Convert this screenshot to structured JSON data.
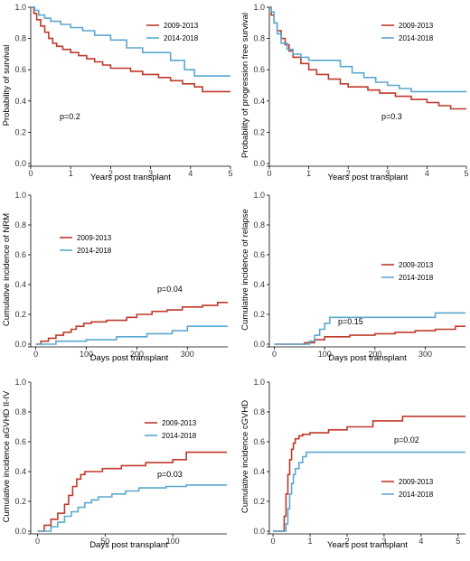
{
  "colors": {
    "series_2009_2013": "#c0392b",
    "series_2014_2018": "#5ba8cf"
  },
  "chart_data": [
    {
      "type": "line",
      "step": true,
      "xlabel": "Years post transplant",
      "ylabel": "Probability of survival",
      "xlim": [
        0,
        5
      ],
      "ylim": [
        0,
        1
      ],
      "xticks": [
        0,
        1,
        2,
        3,
        4,
        5
      ],
      "xtick_labels": [
        "0",
        "1",
        "2",
        "3",
        "4",
        "5"
      ],
      "yticks": [
        0,
        0.2,
        0.4,
        0.6,
        0.8,
        1.0
      ],
      "ytick_labels": [
        "0.0",
        "0.2",
        "0.4",
        "0.6",
        "0.8",
        "1.0"
      ],
      "pvalue": "p=0.2",
      "legend_position": "top-right",
      "series": [
        {
          "name": "2009-2013",
          "color": "#c0392b",
          "x": [
            0,
            0.08,
            0.15,
            0.25,
            0.35,
            0.45,
            0.55,
            0.65,
            0.8,
            1.0,
            1.2,
            1.4,
            1.6,
            1.8,
            2.0,
            2.5,
            2.8,
            3.2,
            3.5,
            3.8,
            4.1,
            4.3,
            5.0
          ],
          "y": [
            1.0,
            0.96,
            0.92,
            0.88,
            0.84,
            0.8,
            0.77,
            0.75,
            0.73,
            0.71,
            0.69,
            0.67,
            0.65,
            0.63,
            0.61,
            0.59,
            0.57,
            0.55,
            0.53,
            0.51,
            0.49,
            0.46,
            0.46
          ]
        },
        {
          "name": "2014-2018",
          "color": "#5ba8cf",
          "x": [
            0,
            0.1,
            0.2,
            0.35,
            0.5,
            0.75,
            1.0,
            1.3,
            1.6,
            2.0,
            2.4,
            2.8,
            3.5,
            3.85,
            4.1,
            5.0
          ],
          "y": [
            1.0,
            0.98,
            0.95,
            0.93,
            0.91,
            0.89,
            0.87,
            0.85,
            0.82,
            0.79,
            0.74,
            0.71,
            0.66,
            0.6,
            0.56,
            0.56
          ]
        }
      ]
    },
    {
      "type": "line",
      "step": true,
      "xlabel": "Years post transplant",
      "ylabel": "Probability of progression free survival",
      "xlim": [
        0,
        5
      ],
      "ylim": [
        0,
        1
      ],
      "xticks": [
        0,
        1,
        2,
        3,
        4,
        5
      ],
      "xtick_labels": [
        "0",
        "1",
        "2",
        "3",
        "4",
        "5"
      ],
      "yticks": [
        0,
        0.2,
        0.4,
        0.6,
        0.8,
        1.0
      ],
      "ytick_labels": [
        "0.0",
        "0.2",
        "0.4",
        "0.6",
        "0.8",
        "1.0"
      ],
      "pvalue": "p=0.3",
      "legend_position": "top-right",
      "series": [
        {
          "name": "2009-2013",
          "color": "#c0392b",
          "x": [
            0,
            0.05,
            0.12,
            0.2,
            0.3,
            0.4,
            0.5,
            0.6,
            0.8,
            1.0,
            1.2,
            1.5,
            1.8,
            2.0,
            2.5,
            2.8,
            3.2,
            3.6,
            4.0,
            4.3,
            4.6,
            5.0
          ],
          "y": [
            1.0,
            0.95,
            0.9,
            0.85,
            0.8,
            0.76,
            0.72,
            0.68,
            0.64,
            0.6,
            0.57,
            0.54,
            0.51,
            0.49,
            0.47,
            0.45,
            0.43,
            0.41,
            0.39,
            0.37,
            0.35,
            0.35
          ]
        },
        {
          "name": "2014-2018",
          "color": "#5ba8cf",
          "x": [
            0,
            0.05,
            0.12,
            0.2,
            0.3,
            0.45,
            0.6,
            0.8,
            1.0,
            1.8,
            2.1,
            2.4,
            2.7,
            3.0,
            3.3,
            3.6,
            4.3,
            5.0
          ],
          "y": [
            1.0,
            0.97,
            0.9,
            0.83,
            0.77,
            0.73,
            0.7,
            0.68,
            0.66,
            0.62,
            0.58,
            0.55,
            0.52,
            0.5,
            0.48,
            0.46,
            0.46,
            0.46
          ]
        }
      ]
    },
    {
      "type": "line",
      "step": true,
      "xlabel": "Days post transplant",
      "ylabel": "Cumulative incidence of NRM",
      "xlim": [
        -10,
        380
      ],
      "ylim": [
        0,
        1
      ],
      "xticks": [
        0,
        100,
        200,
        300
      ],
      "xtick_labels": [
        "0",
        "100",
        "200",
        "300"
      ],
      "yticks": [
        0,
        0.2,
        0.4,
        0.6,
        0.8,
        1.0
      ],
      "ytick_labels": [
        "0.0",
        "0.2",
        "0.4",
        "0.6",
        "0.8",
        "1.0"
      ],
      "pvalue": "p=0.04",
      "legend_position": "top-left",
      "series": [
        {
          "name": "2009-2013",
          "color": "#c0392b",
          "x": [
            0,
            10,
            25,
            40,
            55,
            70,
            80,
            95,
            110,
            140,
            180,
            200,
            230,
            260,
            290,
            330,
            360,
            380
          ],
          "y": [
            0,
            0.02,
            0.04,
            0.06,
            0.08,
            0.1,
            0.12,
            0.14,
            0.15,
            0.16,
            0.18,
            0.2,
            0.22,
            0.23,
            0.25,
            0.26,
            0.28,
            0.28
          ]
        },
        {
          "name": "2014-2018",
          "color": "#5ba8cf",
          "x": [
            0,
            40,
            100,
            160,
            220,
            270,
            300,
            380
          ],
          "y": [
            0,
            0.02,
            0.03,
            0.05,
            0.07,
            0.09,
            0.12,
            0.12
          ]
        }
      ]
    },
    {
      "type": "line",
      "step": true,
      "xlabel": "Days post transplant",
      "ylabel": "Cumulative incidence of relapse",
      "xlim": [
        -10,
        380
      ],
      "ylim": [
        0,
        1
      ],
      "xticks": [
        0,
        100,
        200,
        300
      ],
      "xtick_labels": [
        "0",
        "100",
        "200",
        "300"
      ],
      "yticks": [
        0,
        0.2,
        0.4,
        0.6,
        0.8,
        1.0
      ],
      "ytick_labels": [
        "0.0",
        "0.2",
        "0.4",
        "0.6",
        "0.8",
        "1.0"
      ],
      "pvalue": "p=0.15",
      "legend_position": "right",
      "series": [
        {
          "name": "2009-2013",
          "color": "#c0392b",
          "x": [
            0,
            60,
            80,
            100,
            150,
            200,
            240,
            280,
            320,
            360,
            380
          ],
          "y": [
            0,
            0.01,
            0.03,
            0.05,
            0.06,
            0.07,
            0.08,
            0.09,
            0.1,
            0.12,
            0.12
          ]
        },
        {
          "name": "2014-2018",
          "color": "#5ba8cf",
          "x": [
            0,
            70,
            80,
            90,
            100,
            110,
            160,
            320,
            380
          ],
          "y": [
            0,
            0.02,
            0.06,
            0.1,
            0.14,
            0.18,
            0.18,
            0.21,
            0.21
          ]
        }
      ]
    },
    {
      "type": "line",
      "step": true,
      "xlabel": "Days post transplant",
      "ylabel": "Cumulative incidence aGVHD II-IV",
      "xlim": [
        -5,
        140
      ],
      "ylim": [
        0,
        1
      ],
      "xticks": [
        0,
        50,
        100
      ],
      "xtick_labels": [
        "0",
        "50",
        "100"
      ],
      "yticks": [
        0,
        0.2,
        0.4,
        0.6,
        0.8,
        1.0
      ],
      "ytick_labels": [
        "0.0",
        "0.2",
        "0.4",
        "0.6",
        "0.8",
        "1.0"
      ],
      "pvalue": "p=0.03",
      "legend_position": "top-right",
      "series": [
        {
          "name": "2009-2013",
          "color": "#c0392b",
          "x": [
            0,
            5,
            10,
            15,
            20,
            23,
            26,
            29,
            32,
            35,
            48,
            62,
            80,
            100,
            110,
            140
          ],
          "y": [
            0,
            0.04,
            0.08,
            0.12,
            0.18,
            0.24,
            0.3,
            0.35,
            0.38,
            0.4,
            0.42,
            0.44,
            0.46,
            0.48,
            0.53,
            0.53
          ]
        },
        {
          "name": "2014-2018",
          "color": "#5ba8cf",
          "x": [
            0,
            10,
            15,
            20,
            25,
            30,
            35,
            40,
            45,
            55,
            65,
            75,
            95,
            110,
            140
          ],
          "y": [
            0,
            0.03,
            0.06,
            0.1,
            0.13,
            0.16,
            0.19,
            0.21,
            0.23,
            0.25,
            0.27,
            0.29,
            0.3,
            0.31,
            0.31
          ]
        }
      ]
    },
    {
      "type": "line",
      "step": true,
      "xlabel": "Years post transplant",
      "ylabel": "Cumulative incidence cGVHD",
      "xlim": [
        -0.1,
        5.2
      ],
      "ylim": [
        0,
        1
      ],
      "xticks": [
        0,
        1,
        2,
        3,
        4,
        5
      ],
      "xtick_labels": [
        "0",
        "1",
        "2",
        "3",
        "4",
        "5"
      ],
      "yticks": [
        0,
        0.2,
        0.4,
        0.6,
        0.8,
        1.0
      ],
      "ytick_labels": [
        "0.0",
        "0.2",
        "0.4",
        "0.6",
        "0.8",
        "1.0"
      ],
      "pvalue": "p=0.02",
      "legend_position": "bottom-right",
      "series": [
        {
          "name": "2009-2013",
          "color": "#c0392b",
          "x": [
            0,
            0.3,
            0.35,
            0.4,
            0.45,
            0.5,
            0.55,
            0.6,
            0.7,
            0.8,
            1.0,
            1.5,
            2.0,
            2.7,
            3.5,
            5.2
          ],
          "y": [
            0,
            0.1,
            0.25,
            0.38,
            0.48,
            0.55,
            0.59,
            0.62,
            0.64,
            0.65,
            0.66,
            0.68,
            0.7,
            0.74,
            0.77,
            0.77
          ]
        },
        {
          "name": "2014-2018",
          "color": "#5ba8cf",
          "x": [
            0,
            0.35,
            0.4,
            0.45,
            0.5,
            0.55,
            0.6,
            0.7,
            0.8,
            0.9,
            5.2
          ],
          "y": [
            0,
            0.05,
            0.15,
            0.25,
            0.32,
            0.38,
            0.42,
            0.46,
            0.5,
            0.53,
            0.53
          ]
        }
      ]
    }
  ]
}
